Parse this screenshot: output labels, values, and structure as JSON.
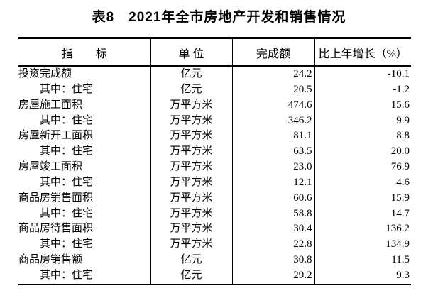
{
  "page": {
    "background_color": "#ffffff",
    "text_color": "#000000",
    "rule_color": "#000000"
  },
  "title": "表8　2021年全市房地产开发和销售情况",
  "table": {
    "headers": {
      "indicator": "指　　标",
      "unit": "单 位",
      "value": "完成额",
      "growth": "比上年增长（%）"
    },
    "rows": [
      {
        "indicator": "投资完成额",
        "unit": "亿元",
        "value": "24.2",
        "growth": "-10.1"
      },
      {
        "indicator": "其中：住宅",
        "unit": "亿元",
        "value": "20.5",
        "growth": "-1.2"
      },
      {
        "indicator": "房屋施工面积",
        "unit": "万平方米",
        "value": "474.6",
        "growth": "15.6"
      },
      {
        "indicator": "其中：住宅",
        "unit": "万平方米",
        "value": "346.2",
        "growth": "9.9"
      },
      {
        "indicator": "房屋新开工面积",
        "unit": "万平方米",
        "value": "81.1",
        "growth": "8.8"
      },
      {
        "indicator": "其中：住宅",
        "unit": "万平方米",
        "value": "63.5",
        "growth": "20.0"
      },
      {
        "indicator": "房屋竣工面积",
        "unit": "万平方米",
        "value": "23.0",
        "growth": "76.9"
      },
      {
        "indicator": "其中：住宅",
        "unit": "万平方米",
        "value": "12.1",
        "growth": "4.6"
      },
      {
        "indicator": "商品房销售面积",
        "unit": "万平方米",
        "value": "60.6",
        "growth": "15.9"
      },
      {
        "indicator": "其中：住宅",
        "unit": "万平方米",
        "value": "58.8",
        "growth": "14.7"
      },
      {
        "indicator": "商品房待售面积",
        "unit": "万平方米",
        "value": "30.4",
        "growth": "136.2"
      },
      {
        "indicator": "其中：住宅",
        "unit": "万平方米",
        "value": "22.8",
        "growth": "134.9"
      },
      {
        "indicator": "商品房销售额",
        "unit": "亿元",
        "value": "30.8",
        "growth": "11.5"
      },
      {
        "indicator": "其中：住宅",
        "unit": "亿元",
        "value": "29.2",
        "growth": "9.3"
      }
    ]
  }
}
